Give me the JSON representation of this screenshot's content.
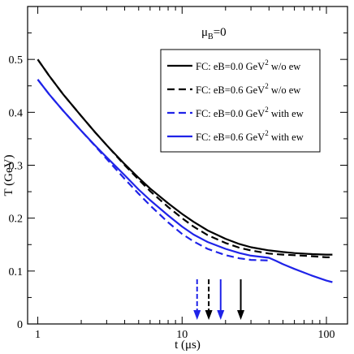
{
  "chart_data": {
    "type": "line",
    "title": "",
    "xlabel": "t (μs)",
    "ylabel": "T (GeV)",
    "xscale": "log",
    "xlim": [
      0.85,
      140
    ],
    "ylim": [
      0,
      0.6
    ],
    "x_ticks": [
      1,
      10,
      100
    ],
    "y_ticks": [
      0,
      0.1,
      0.2,
      0.3,
      0.4,
      0.5
    ],
    "x_tick_labels": [
      "1",
      "10",
      "100"
    ],
    "y_tick_labels": [
      "0",
      "0.1",
      "0.2",
      "0.3",
      "0.4",
      "0.5"
    ],
    "annotation": {
      "main": "μ",
      "sub": "B",
      "tail": "=0"
    },
    "legend_position": "top-right",
    "series": [
      {
        "name": "FC: eB=0.0 GeV",
        "name_sup": "2",
        "name_tail": " w/o ew",
        "color": "#000000",
        "dash": "solid",
        "x": [
          1,
          1.2,
          1.5,
          2,
          2.5,
          3,
          4,
          5,
          6,
          8,
          10,
          12,
          15,
          20,
          25,
          30,
          40,
          50,
          60,
          80,
          100,
          110
        ],
        "y": [
          0.5,
          0.469,
          0.434,
          0.393,
          0.362,
          0.338,
          0.302,
          0.276,
          0.256,
          0.228,
          0.208,
          0.193,
          0.177,
          0.161,
          0.151,
          0.145,
          0.139,
          0.136,
          0.134,
          0.132,
          0.131,
          0.131
        ]
      },
      {
        "name": "FC: eB=0.6 GeV",
        "name_sup": "2",
        "name_tail": " w/o ew",
        "color": "#000000",
        "dash": "dashed",
        "x": [
          1,
          1.2,
          1.5,
          2,
          2.5,
          3,
          4,
          5,
          6,
          8,
          10,
          12,
          15,
          20,
          25,
          30,
          40,
          50,
          60,
          80,
          100,
          110
        ],
        "y": [
          0.5,
          0.469,
          0.434,
          0.393,
          0.362,
          0.338,
          0.3,
          0.273,
          0.251,
          0.221,
          0.2,
          0.184,
          0.168,
          0.153,
          0.144,
          0.139,
          0.133,
          0.131,
          0.13,
          0.128,
          0.126,
          0.126
        ]
      },
      {
        "name": "FC: eB=0.0 GeV",
        "name_sup": "2",
        "name_tail": " with ew",
        "color": "#1f23e8",
        "dash": "dashed",
        "x": [
          1,
          1.2,
          1.5,
          2,
          2.5,
          3,
          4,
          5,
          6,
          8,
          10,
          12,
          15,
          20,
          25,
          30,
          40
        ],
        "y": [
          0.462,
          0.434,
          0.403,
          0.365,
          0.336,
          0.312,
          0.274,
          0.246,
          0.224,
          0.192,
          0.17,
          0.156,
          0.142,
          0.13,
          0.124,
          0.121,
          0.12
        ]
      },
      {
        "name": "FC: eB=0.6 GeV",
        "name_sup": "2",
        "name_tail": " with ew",
        "color": "#1f23e8",
        "dash": "solid",
        "x": [
          1,
          1.2,
          1.5,
          2,
          2.5,
          3,
          4,
          5,
          6,
          8,
          10,
          12,
          15,
          20,
          25,
          30,
          40,
          45,
          50,
          60,
          80,
          100,
          110
        ],
        "y": [
          0.462,
          0.434,
          0.403,
          0.365,
          0.337,
          0.315,
          0.281,
          0.254,
          0.234,
          0.205,
          0.184,
          0.169,
          0.155,
          0.142,
          0.134,
          0.129,
          0.125,
          0.119,
          0.113,
          0.104,
          0.091,
          0.082,
          0.079
        ]
      }
    ],
    "arrows": [
      {
        "x": 12.7,
        "color": "#1f23e8",
        "dash": "dashed"
      },
      {
        "x": 15.3,
        "color": "#000000",
        "dash": "dashed"
      },
      {
        "x": 18.5,
        "color": "#1f23e8",
        "dash": "solid"
      },
      {
        "x": 25.5,
        "color": "#000000",
        "dash": "solid"
      }
    ]
  }
}
